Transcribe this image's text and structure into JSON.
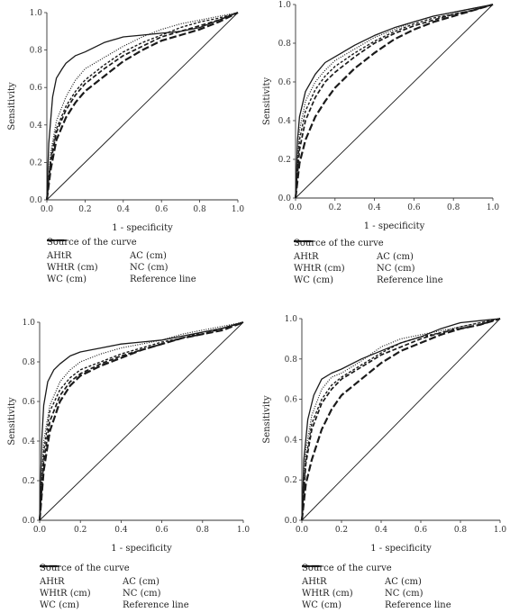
{
  "chart_data": [
    {
      "type": "line",
      "xlabel": "1 - specificity",
      "ylabel": "Sensitivity",
      "xlim": [
        0,
        1
      ],
      "ylim": [
        0,
        1
      ],
      "xticks": [
        "0.0",
        "0.2",
        "0.4",
        "0.6",
        "0.8",
        "1.0"
      ],
      "yticks": [
        "0.0",
        "0.2",
        "0.4",
        "0.6",
        "0.8",
        "1.0"
      ],
      "legend_title": "Source of the curve",
      "legend_position": "below",
      "series": [
        {
          "name": "AHtR",
          "style": "solid",
          "x": [
            0,
            0.01,
            0.03,
            0.05,
            0.08,
            0.1,
            0.15,
            0.2,
            0.3,
            0.4,
            0.5,
            0.6,
            0.7,
            0.8,
            0.9,
            1.0
          ],
          "y": [
            0,
            0.3,
            0.55,
            0.65,
            0.7,
            0.73,
            0.77,
            0.79,
            0.84,
            0.87,
            0.88,
            0.89,
            0.9,
            0.92,
            0.96,
            1.0
          ]
        },
        {
          "name": "WHtR (cm)",
          "style": "dotted",
          "x": [
            0,
            0.02,
            0.05,
            0.1,
            0.15,
            0.2,
            0.3,
            0.4,
            0.5,
            0.6,
            0.7,
            0.8,
            0.9,
            1.0
          ],
          "y": [
            0,
            0.25,
            0.42,
            0.55,
            0.64,
            0.7,
            0.76,
            0.82,
            0.87,
            0.91,
            0.94,
            0.96,
            0.98,
            1.0
          ]
        },
        {
          "name": "WC (cm)",
          "style": "short-dash",
          "x": [
            0,
            0.02,
            0.05,
            0.1,
            0.15,
            0.2,
            0.3,
            0.4,
            0.5,
            0.6,
            0.7,
            0.8,
            0.9,
            1.0
          ],
          "y": [
            0,
            0.22,
            0.38,
            0.5,
            0.58,
            0.64,
            0.72,
            0.79,
            0.84,
            0.88,
            0.92,
            0.95,
            0.97,
            1.0
          ]
        },
        {
          "name": "AC (cm)",
          "style": "dash",
          "x": [
            0,
            0.02,
            0.05,
            0.1,
            0.15,
            0.2,
            0.3,
            0.4,
            0.5,
            0.6,
            0.7,
            0.8,
            0.9,
            1.0
          ],
          "y": [
            0,
            0.2,
            0.36,
            0.48,
            0.56,
            0.62,
            0.7,
            0.77,
            0.82,
            0.87,
            0.9,
            0.93,
            0.96,
            1.0
          ]
        },
        {
          "name": "NC (cm)",
          "style": "long-dash",
          "x": [
            0,
            0.02,
            0.05,
            0.1,
            0.15,
            0.2,
            0.3,
            0.4,
            0.5,
            0.6,
            0.7,
            0.8,
            0.9,
            1.0
          ],
          "y": [
            0,
            0.16,
            0.32,
            0.44,
            0.52,
            0.58,
            0.66,
            0.74,
            0.8,
            0.85,
            0.88,
            0.91,
            0.95,
            1.0
          ]
        },
        {
          "name": "Reference line",
          "style": "thin-solid",
          "x": [
            0,
            1
          ],
          "y": [
            0,
            1
          ]
        }
      ]
    },
    {
      "type": "line",
      "xlabel": "1 - specificity",
      "ylabel": "Sensitivity",
      "xlim": [
        0,
        1
      ],
      "ylim": [
        0,
        1
      ],
      "xticks": [
        "0.0",
        "0.2",
        "0.4",
        "0.6",
        "0.8",
        "1.0"
      ],
      "yticks": [
        "0.0",
        "0.2",
        "0.4",
        "0.6",
        "0.8",
        "1.0"
      ],
      "legend_title": "Source of the curve",
      "legend_position": "below",
      "series": [
        {
          "name": "AHtR",
          "style": "solid",
          "x": [
            0,
            0.01,
            0.02,
            0.05,
            0.1,
            0.15,
            0.2,
            0.3,
            0.4,
            0.5,
            0.6,
            0.7,
            0.8,
            0.9,
            1.0
          ],
          "y": [
            0,
            0.3,
            0.42,
            0.55,
            0.64,
            0.7,
            0.73,
            0.79,
            0.84,
            0.88,
            0.91,
            0.94,
            0.96,
            0.98,
            1.0
          ]
        },
        {
          "name": "WHtR (cm)",
          "style": "dotted",
          "x": [
            0,
            0.02,
            0.05,
            0.1,
            0.15,
            0.2,
            0.3,
            0.4,
            0.5,
            0.6,
            0.7,
            0.8,
            0.9,
            1.0
          ],
          "y": [
            0,
            0.35,
            0.5,
            0.6,
            0.66,
            0.71,
            0.77,
            0.83,
            0.87,
            0.91,
            0.94,
            0.96,
            0.98,
            1.0
          ]
        },
        {
          "name": "WC (cm)",
          "style": "short-dash",
          "x": [
            0,
            0.02,
            0.05,
            0.1,
            0.15,
            0.2,
            0.3,
            0.4,
            0.5,
            0.6,
            0.7,
            0.8,
            0.9,
            1.0
          ],
          "y": [
            0,
            0.3,
            0.45,
            0.56,
            0.63,
            0.68,
            0.75,
            0.81,
            0.86,
            0.9,
            0.93,
            0.95,
            0.97,
            1.0
          ]
        },
        {
          "name": "AC (cm)",
          "style": "dash",
          "x": [
            0,
            0.02,
            0.05,
            0.1,
            0.15,
            0.2,
            0.3,
            0.4,
            0.5,
            0.6,
            0.7,
            0.8,
            0.9,
            1.0
          ],
          "y": [
            0,
            0.25,
            0.4,
            0.52,
            0.6,
            0.65,
            0.73,
            0.8,
            0.85,
            0.89,
            0.92,
            0.95,
            0.97,
            1.0
          ]
        },
        {
          "name": "NC (cm)",
          "style": "long-dash",
          "x": [
            0,
            0.02,
            0.05,
            0.1,
            0.15,
            0.2,
            0.3,
            0.4,
            0.5,
            0.6,
            0.7,
            0.8,
            0.9,
            1.0
          ],
          "y": [
            0,
            0.18,
            0.3,
            0.42,
            0.5,
            0.57,
            0.67,
            0.75,
            0.82,
            0.87,
            0.91,
            0.94,
            0.97,
            1.0
          ]
        },
        {
          "name": "Reference line",
          "style": "thin-solid",
          "x": [
            0,
            1
          ],
          "y": [
            0,
            1
          ]
        }
      ]
    },
    {
      "type": "line",
      "xlabel": "1 - specificity",
      "ylabel": "Sensitivity",
      "xlim": [
        0,
        1
      ],
      "ylim": [
        0,
        1
      ],
      "xticks": [
        "0.0",
        "0.2",
        "0.4",
        "0.6",
        "0.8",
        "1.0"
      ],
      "yticks": [
        "0.0",
        "0.2",
        "0.4",
        "0.6",
        "0.8",
        "1.0"
      ],
      "legend_title": "Source of the curve",
      "legend_position": "below",
      "series": [
        {
          "name": "AHtR",
          "style": "solid",
          "x": [
            0,
            0.01,
            0.02,
            0.04,
            0.07,
            0.1,
            0.15,
            0.2,
            0.3,
            0.4,
            0.5,
            0.6,
            0.7,
            0.8,
            0.9,
            1.0
          ],
          "y": [
            0,
            0.4,
            0.58,
            0.7,
            0.76,
            0.79,
            0.83,
            0.85,
            0.87,
            0.89,
            0.9,
            0.91,
            0.93,
            0.95,
            0.97,
            1.0
          ]
        },
        {
          "name": "WHtR (cm)",
          "style": "dotted",
          "x": [
            0,
            0.02,
            0.05,
            0.1,
            0.15,
            0.2,
            0.3,
            0.4,
            0.5,
            0.6,
            0.7,
            0.8,
            0.9,
            1.0
          ],
          "y": [
            0,
            0.4,
            0.58,
            0.7,
            0.76,
            0.8,
            0.84,
            0.87,
            0.89,
            0.91,
            0.94,
            0.96,
            0.98,
            1.0
          ]
        },
        {
          "name": "WC (cm)",
          "style": "short-dash",
          "x": [
            0,
            0.02,
            0.05,
            0.1,
            0.15,
            0.2,
            0.3,
            0.4,
            0.5,
            0.6,
            0.7,
            0.8,
            0.9,
            1.0
          ],
          "y": [
            0,
            0.35,
            0.55,
            0.66,
            0.72,
            0.76,
            0.8,
            0.84,
            0.87,
            0.9,
            0.92,
            0.95,
            0.97,
            1.0
          ]
        },
        {
          "name": "AC (cm)",
          "style": "dash",
          "x": [
            0,
            0.02,
            0.05,
            0.1,
            0.15,
            0.2,
            0.3,
            0.4,
            0.5,
            0.6,
            0.7,
            0.8,
            0.9,
            1.0
          ],
          "y": [
            0,
            0.3,
            0.5,
            0.63,
            0.7,
            0.74,
            0.79,
            0.83,
            0.86,
            0.89,
            0.92,
            0.94,
            0.97,
            1.0
          ]
        },
        {
          "name": "NC (cm)",
          "style": "long-dash",
          "x": [
            0,
            0.02,
            0.05,
            0.1,
            0.15,
            0.2,
            0.3,
            0.4,
            0.5,
            0.6,
            0.7,
            0.8,
            0.9,
            1.0
          ],
          "y": [
            0,
            0.25,
            0.45,
            0.6,
            0.68,
            0.73,
            0.78,
            0.82,
            0.86,
            0.89,
            0.92,
            0.94,
            0.96,
            1.0
          ]
        },
        {
          "name": "Reference line",
          "style": "thin-solid",
          "x": [
            0,
            1
          ],
          "y": [
            0,
            1
          ]
        }
      ]
    },
    {
      "type": "line",
      "xlabel": "1 - specificity",
      "ylabel": "Sensitivity",
      "xlim": [
        0,
        1
      ],
      "ylim": [
        0,
        1
      ],
      "xticks": [
        "0.0",
        "0.2",
        "0.4",
        "0.6",
        "0.8",
        "1.0"
      ],
      "yticks": [
        "0.0",
        "0.2",
        "0.4",
        "0.6",
        "0.8",
        "1.0"
      ],
      "legend_title": "Source of the curve",
      "legend_position": "below",
      "series": [
        {
          "name": "AHtR",
          "style": "solid",
          "x": [
            0,
            0.01,
            0.03,
            0.06,
            0.1,
            0.15,
            0.2,
            0.3,
            0.4,
            0.5,
            0.6,
            0.7,
            0.8,
            0.9,
            1.0
          ],
          "y": [
            0,
            0.3,
            0.5,
            0.62,
            0.7,
            0.73,
            0.75,
            0.8,
            0.84,
            0.88,
            0.91,
            0.95,
            0.98,
            0.99,
            1.0
          ]
        },
        {
          "name": "WHtR (cm)",
          "style": "dotted",
          "x": [
            0,
            0.02,
            0.05,
            0.1,
            0.15,
            0.2,
            0.3,
            0.4,
            0.5,
            0.6,
            0.7,
            0.8,
            0.9,
            1.0
          ],
          "y": [
            0,
            0.35,
            0.52,
            0.65,
            0.71,
            0.73,
            0.79,
            0.86,
            0.9,
            0.92,
            0.94,
            0.96,
            0.98,
            1.0
          ]
        },
        {
          "name": "WC (cm)",
          "style": "short-dash",
          "x": [
            0,
            0.02,
            0.05,
            0.1,
            0.15,
            0.2,
            0.3,
            0.4,
            0.5,
            0.6,
            0.7,
            0.8,
            0.9,
            1.0
          ],
          "y": [
            0,
            0.3,
            0.48,
            0.6,
            0.67,
            0.71,
            0.77,
            0.83,
            0.88,
            0.91,
            0.93,
            0.96,
            0.98,
            1.0
          ]
        },
        {
          "name": "AC (cm)",
          "style": "dash",
          "x": [
            0,
            0.02,
            0.05,
            0.1,
            0.15,
            0.2,
            0.3,
            0.4,
            0.5,
            0.6,
            0.7,
            0.8,
            0.9,
            1.0
          ],
          "y": [
            0,
            0.28,
            0.45,
            0.58,
            0.65,
            0.7,
            0.76,
            0.82,
            0.86,
            0.9,
            0.93,
            0.95,
            0.97,
            1.0
          ]
        },
        {
          "name": "NC (cm)",
          "style": "long-dash",
          "x": [
            0,
            0.02,
            0.05,
            0.1,
            0.15,
            0.2,
            0.3,
            0.4,
            0.5,
            0.6,
            0.7,
            0.8,
            0.9,
            1.0
          ],
          "y": [
            0,
            0.18,
            0.3,
            0.45,
            0.55,
            0.62,
            0.7,
            0.78,
            0.84,
            0.88,
            0.92,
            0.95,
            0.97,
            1.0
          ]
        },
        {
          "name": "Reference line",
          "style": "thin-solid",
          "x": [
            0,
            1
          ],
          "y": [
            0,
            1
          ]
        }
      ]
    }
  ]
}
